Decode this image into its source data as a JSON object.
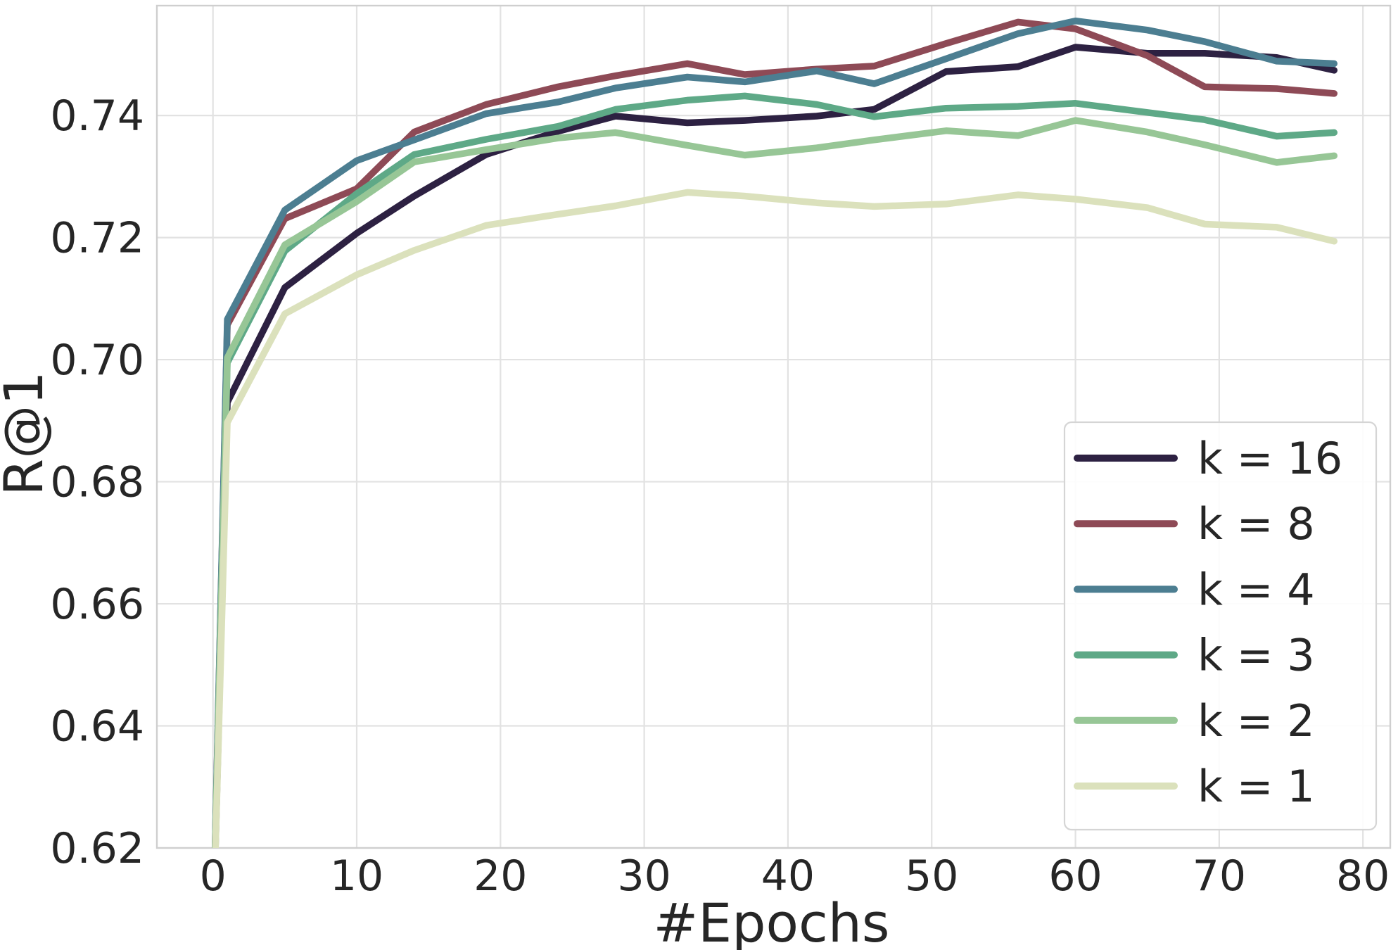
{
  "chart_data": {
    "type": "line",
    "title": "",
    "xlabel": "#Epochs",
    "ylabel": "R@1",
    "xlim": [
      -3.9,
      81.9
    ],
    "ylim": [
      0.62,
      0.758
    ],
    "xticks": [
      0,
      10,
      20,
      30,
      40,
      50,
      60,
      70,
      80
    ],
    "yticks": [
      0.62,
      0.64,
      0.66,
      0.68,
      0.7,
      0.72,
      0.74
    ],
    "ytick_decimals": 2,
    "grid": true,
    "legend_position": "lower right",
    "x": [
      0,
      1,
      5,
      10,
      14,
      19,
      24,
      28,
      33,
      37,
      42,
      46,
      51,
      56,
      60,
      65,
      69,
      74,
      78
    ],
    "series": [
      {
        "name": "k = 16",
        "color": "#2d2142",
        "values": [
          0.605,
          0.693,
          0.7118,
          0.7207,
          0.7268,
          0.7336,
          0.7374,
          0.7399,
          0.7388,
          0.7392,
          0.7399,
          0.741,
          0.7472,
          0.748,
          0.7512,
          0.7502,
          0.7502,
          0.7495,
          0.7474
        ]
      },
      {
        "name": "k = 8",
        "color": "#8e4a56",
        "values": [
          0.605,
          0.7057,
          0.7231,
          0.728,
          0.7373,
          0.7418,
          0.7447,
          0.7465,
          0.7485,
          0.7467,
          0.7476,
          0.7481,
          0.7518,
          0.7553,
          0.7542,
          0.7498,
          0.7447,
          0.7444,
          0.7436
        ]
      },
      {
        "name": "k = 4",
        "color": "#4c7e91",
        "values": [
          0.605,
          0.7066,
          0.7245,
          0.7326,
          0.736,
          0.7403,
          0.7422,
          0.7445,
          0.7463,
          0.7455,
          0.7473,
          0.7452,
          0.7493,
          0.7534,
          0.7555,
          0.754,
          0.7521,
          0.7489,
          0.7485
        ]
      },
      {
        "name": "k = 3",
        "color": "#5ea987",
        "values": [
          0.605,
          0.6995,
          0.7178,
          0.7272,
          0.7336,
          0.7361,
          0.7382,
          0.741,
          0.7425,
          0.7432,
          0.7418,
          0.7398,
          0.7412,
          0.7415,
          0.742,
          0.7405,
          0.7393,
          0.7366,
          0.7372
        ]
      },
      {
        "name": "k = 2",
        "color": "#97c696",
        "values": [
          0.605,
          0.7003,
          0.7188,
          0.7259,
          0.7324,
          0.7344,
          0.7363,
          0.7372,
          0.7351,
          0.7335,
          0.7347,
          0.736,
          0.7375,
          0.7367,
          0.7392,
          0.7373,
          0.7352,
          0.7323,
          0.7334
        ]
      },
      {
        "name": "k = 1",
        "color": "#dbe1bc",
        "values": [
          0.605,
          0.6897,
          0.7075,
          0.7139,
          0.7179,
          0.722,
          0.7238,
          0.7252,
          0.7274,
          0.7268,
          0.7257,
          0.7251,
          0.7255,
          0.727,
          0.7263,
          0.7249,
          0.7222,
          0.7217,
          0.7194
        ]
      }
    ],
    "style": {
      "background": "#ffffff",
      "grid_color": "#e2e2e2",
      "spine_color": "#cfcfcf",
      "text_color": "#262626",
      "line_width": 9.5
    }
  }
}
